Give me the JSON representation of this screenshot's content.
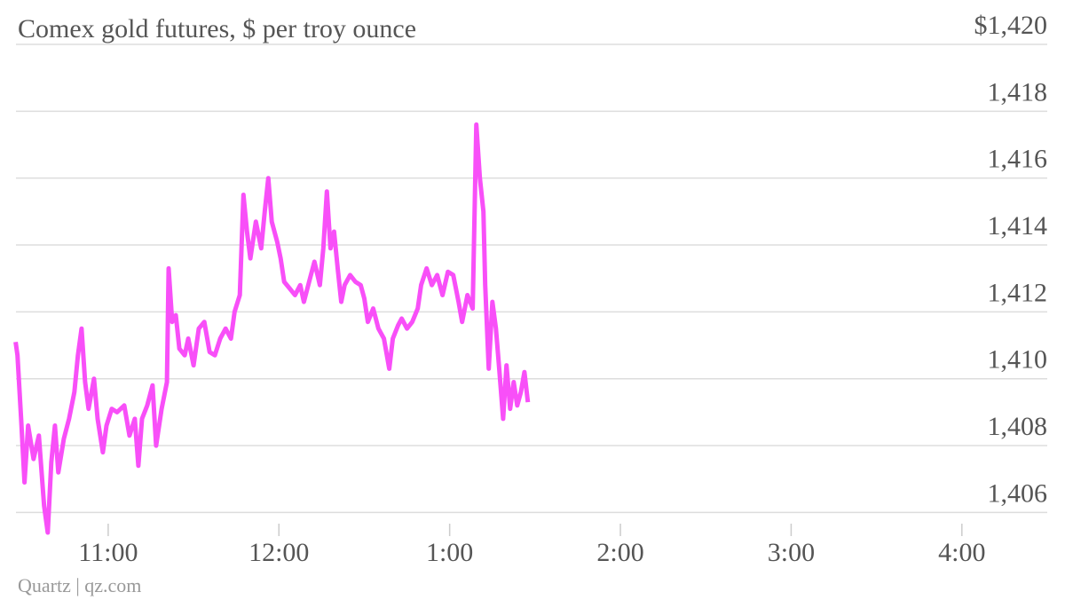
{
  "chart_data": {
    "type": "line",
    "title": "Comex gold futures, $ per troy ounce",
    "source": "Quartz | qz.com",
    "xlim": [
      10.46,
      16.5
    ],
    "xticks": [
      {
        "value": 11,
        "label": "11:00"
      },
      {
        "value": 12,
        "label": "12:00"
      },
      {
        "value": 13,
        "label": "1:00"
      },
      {
        "value": 14,
        "label": "2:00"
      },
      {
        "value": 15,
        "label": "3:00"
      },
      {
        "value": 16,
        "label": "4:00"
      }
    ],
    "ylim": [
      1405.4,
      1420
    ],
    "yticks": [
      1406,
      1408,
      1410,
      1412,
      1414,
      1416,
      1418,
      {
        "value": 1420,
        "label": "$1,420"
      }
    ],
    "ytick_labels": [
      "1,406",
      "1,408",
      "1,410",
      "1,412",
      "1,414",
      "1,416",
      "1,418"
    ],
    "grid": true,
    "x": [
      10.458,
      10.469,
      10.49,
      10.51,
      10.531,
      10.563,
      10.594,
      10.625,
      10.646,
      10.667,
      10.688,
      10.708,
      10.74,
      10.771,
      10.802,
      10.823,
      10.844,
      10.865,
      10.885,
      10.917,
      10.938,
      10.969,
      10.99,
      11.021,
      11.052,
      11.094,
      11.125,
      11.156,
      11.177,
      11.198,
      11.229,
      11.26,
      11.281,
      11.313,
      11.344,
      11.354,
      11.375,
      11.396,
      11.417,
      11.448,
      11.469,
      11.5,
      11.531,
      11.563,
      11.594,
      11.625,
      11.656,
      11.688,
      11.719,
      11.74,
      11.771,
      11.792,
      11.813,
      11.833,
      11.865,
      11.896,
      11.917,
      11.938,
      11.958,
      11.99,
      12.01,
      12.031,
      12.063,
      12.094,
      12.125,
      12.146,
      12.177,
      12.208,
      12.24,
      12.26,
      12.281,
      12.302,
      12.323,
      12.344,
      12.365,
      12.385,
      12.417,
      12.448,
      12.479,
      12.5,
      12.521,
      12.552,
      12.583,
      12.615,
      12.646,
      12.667,
      12.698,
      12.719,
      12.75,
      12.781,
      12.813,
      12.833,
      12.865,
      12.896,
      12.927,
      12.958,
      12.99,
      13.021,
      13.052,
      13.073,
      13.104,
      13.135,
      13.156,
      13.177,
      13.198,
      13.208,
      13.229,
      13.25,
      13.271,
      13.292,
      13.313,
      13.333,
      13.354,
      13.375,
      13.396,
      13.417,
      13.438,
      13.458
    ],
    "series": [
      {
        "name": "Comex gold futures",
        "color": "#f84ff8",
        "values": [
          1411.1,
          1410.7,
          1408.8,
          1406.9,
          1408.6,
          1407.6,
          1408.3,
          1406.2,
          1405.4,
          1407.5,
          1408.6,
          1407.2,
          1408.2,
          1408.8,
          1409.6,
          1410.7,
          1411.5,
          1409.9,
          1409.1,
          1410.0,
          1408.8,
          1407.8,
          1408.6,
          1409.1,
          1409.0,
          1409.2,
          1408.3,
          1408.8,
          1407.4,
          1408.8,
          1409.2,
          1409.8,
          1408.0,
          1409.1,
          1409.9,
          1413.3,
          1411.7,
          1411.9,
          1410.9,
          1410.7,
          1411.2,
          1410.4,
          1411.5,
          1411.7,
          1410.8,
          1410.7,
          1411.2,
          1411.5,
          1411.2,
          1412.0,
          1412.5,
          1415.5,
          1414.4,
          1413.6,
          1414.7,
          1413.9,
          1415.0,
          1416.0,
          1414.7,
          1414.1,
          1413.6,
          1412.9,
          1412.7,
          1412.5,
          1412.8,
          1412.3,
          1412.9,
          1413.5,
          1412.8,
          1413.9,
          1415.6,
          1413.9,
          1414.4,
          1413.3,
          1412.3,
          1412.8,
          1413.1,
          1412.9,
          1412.8,
          1412.4,
          1411.7,
          1412.1,
          1411.5,
          1411.2,
          1410.3,
          1411.2,
          1411.6,
          1411.8,
          1411.5,
          1411.7,
          1412.1,
          1412.8,
          1413.3,
          1412.8,
          1413.1,
          1412.5,
          1413.2,
          1413.1,
          1412.3,
          1411.7,
          1412.5,
          1412.1,
          1417.6,
          1416.0,
          1415.0,
          1412.8,
          1410.3,
          1412.3,
          1411.5,
          1410.2,
          1408.8,
          1410.4,
          1409.1,
          1409.9,
          1409.2,
          1409.6,
          1410.2,
          1409.3
        ]
      }
    ]
  }
}
